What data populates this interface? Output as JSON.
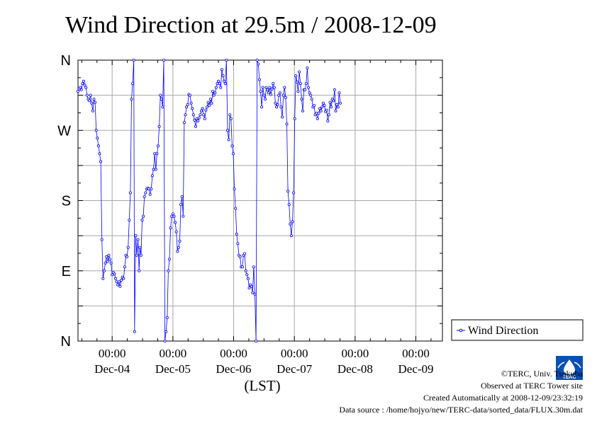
{
  "chart_data": {
    "type": "line",
    "title": "Wind Direction at 29.5m / 2008-12-09",
    "xlabel": "(LST)",
    "x_units": "hours from Dec-04 00:00 (LST)",
    "xlim": [
      15,
      111
    ],
    "ylim": [
      0,
      360
    ],
    "y_ticks": [
      {
        "value": 0,
        "label": "N"
      },
      {
        "value": 90,
        "label": "E"
      },
      {
        "value": 180,
        "label": "S"
      },
      {
        "value": 270,
        "label": "W"
      },
      {
        "value": 360,
        "label": "N"
      }
    ],
    "x_time_ticks": [
      24,
      40,
      56,
      72,
      88,
      104
    ],
    "x_time_labels": [
      "00:00",
      "00:00",
      "00:00",
      "00:00",
      "00:00",
      "00:00"
    ],
    "x_day_labels": [
      {
        "x": 24,
        "label": "Dec-04"
      },
      {
        "x": 40,
        "label": "Dec-05"
      },
      {
        "x": 56,
        "label": "Dec-06"
      },
      {
        "x": 72,
        "label": "Dec-07"
      },
      {
        "x": 88,
        "label": "Dec-08"
      },
      {
        "x": 104,
        "label": "Dec-09"
      }
    ],
    "grid": true,
    "legend_position": "right",
    "series": [
      {
        "name": "Wind Direction",
        "color": "#0000ff",
        "points": [
          [
            15.0,
            320
          ],
          [
            15.3,
            323
          ],
          [
            15.6,
            325
          ],
          [
            15.9,
            322
          ],
          [
            16.2,
            330
          ],
          [
            16.5,
            333
          ],
          [
            16.8,
            328
          ],
          [
            17.1,
            325
          ],
          [
            17.4,
            315
          ],
          [
            17.7,
            310
          ],
          [
            18.0,
            308
          ],
          [
            18.3,
            315
          ],
          [
            18.6,
            305
          ],
          [
            18.9,
            295
          ],
          [
            19.2,
            310
          ],
          [
            19.5,
            306
          ],
          [
            19.8,
            270
          ],
          [
            20.1,
            260
          ],
          [
            20.4,
            250
          ],
          [
            20.7,
            240
          ],
          [
            21.0,
            230
          ],
          [
            21.3,
            130
          ],
          [
            21.6,
            80
          ],
          [
            21.9,
            90
          ],
          [
            22.2,
            100
          ],
          [
            22.5,
            108
          ],
          [
            22.8,
            102
          ],
          [
            23.1,
            110
          ],
          [
            23.4,
            105
          ],
          [
            23.7,
            100
          ],
          [
            24.0,
            85
          ],
          [
            24.3,
            88
          ],
          [
            24.6,
            86
          ],
          [
            24.9,
            80
          ],
          [
            25.2,
            76
          ],
          [
            25.5,
            72
          ],
          [
            25.8,
            76
          ],
          [
            26.1,
            70
          ],
          [
            26.4,
            78
          ],
          [
            26.7,
            82
          ],
          [
            27.0,
            80
          ],
          [
            27.3,
            95
          ],
          [
            27.6,
            110
          ],
          [
            27.9,
            108
          ],
          [
            28.2,
            120
          ],
          [
            28.5,
            155
          ],
          [
            28.8,
            190
          ],
          [
            29.1,
            310
          ],
          [
            29.4,
            330
          ],
          [
            29.7,
            360
          ],
          [
            29.9,
            12
          ],
          [
            30.2,
            135
          ],
          [
            30.5,
            110
          ],
          [
            30.8,
            130
          ],
          [
            31.1,
            90
          ],
          [
            31.3,
            120
          ],
          [
            31.6,
            110
          ],
          [
            31.9,
            155
          ],
          [
            32.2,
            160
          ],
          [
            32.5,
            185
          ],
          [
            32.8,
            190
          ],
          [
            33.1,
            195
          ],
          [
            33.4,
            196
          ],
          [
            33.7,
            195
          ],
          [
            34.0,
            188
          ],
          [
            34.3,
            195
          ],
          [
            34.6,
            212
          ],
          [
            34.9,
            220
          ],
          [
            35.2,
            240
          ],
          [
            35.5,
            220
          ],
          [
            35.8,
            240
          ],
          [
            36.1,
            250
          ],
          [
            36.4,
            275
          ],
          [
            36.7,
            315
          ],
          [
            37.0,
            310
          ],
          [
            37.3,
            300
          ],
          [
            37.6,
            360
          ],
          [
            37.9,
            0
          ],
          [
            38.2,
            12
          ],
          [
            38.5,
            30
          ],
          [
            38.8,
            90
          ],
          [
            39.1,
            105
          ],
          [
            39.4,
            145
          ],
          [
            39.7,
            160
          ],
          [
            40.0,
            163
          ],
          [
            40.3,
            160
          ],
          [
            40.6,
            152
          ],
          [
            40.9,
            140
          ],
          [
            41.2,
            115
          ],
          [
            41.5,
            120
          ],
          [
            41.8,
            128
          ],
          [
            42.1,
            175
          ],
          [
            42.4,
            185
          ],
          [
            42.7,
            160
          ],
          [
            43.0,
            280
          ],
          [
            43.3,
            290
          ],
          [
            43.6,
            300
          ],
          [
            43.9,
            303
          ],
          [
            44.2,
            316
          ],
          [
            44.5,
            315
          ],
          [
            44.8,
            305
          ],
          [
            45.1,
            298
          ],
          [
            45.4,
            290
          ],
          [
            45.7,
            283
          ],
          [
            46.0,
            275
          ],
          [
            46.3,
            285
          ],
          [
            46.6,
            282
          ],
          [
            46.9,
            286
          ],
          [
            47.2,
            290
          ],
          [
            47.5,
            295
          ],
          [
            47.8,
            298
          ],
          [
            48.1,
            290
          ],
          [
            48.4,
            285
          ],
          [
            48.7,
            296
          ],
          [
            49.0,
            300
          ],
          [
            49.3,
            306
          ],
          [
            49.6,
            302
          ],
          [
            49.9,
            310
          ],
          [
            50.2,
            305
          ],
          [
            50.5,
            320
          ],
          [
            50.8,
            315
          ],
          [
            51.1,
            318
          ],
          [
            51.4,
            325
          ],
          [
            51.7,
            330
          ],
          [
            52.0,
            333
          ],
          [
            52.3,
            330
          ],
          [
            52.6,
            325
          ],
          [
            52.9,
            348
          ],
          [
            53.2,
            340
          ],
          [
            53.5,
            333
          ],
          [
            53.8,
            330
          ],
          [
            54.1,
            360
          ],
          [
            54.4,
            270
          ],
          [
            54.7,
            258
          ],
          [
            55.0,
            290
          ],
          [
            55.3,
            285
          ],
          [
            55.6,
            250
          ],
          [
            55.9,
            240
          ],
          [
            56.2,
            195
          ],
          [
            56.5,
            170
          ],
          [
            56.8,
            137
          ],
          [
            57.1,
            125
          ],
          [
            57.4,
            110
          ],
          [
            57.7,
            108
          ],
          [
            58.0,
            95
          ],
          [
            58.3,
            95
          ],
          [
            58.6,
            110
          ],
          [
            58.9,
            112
          ],
          [
            59.2,
            90
          ],
          [
            59.5,
            85
          ],
          [
            59.8,
            80
          ],
          [
            60.1,
            68
          ],
          [
            60.4,
            72
          ],
          [
            60.7,
            70
          ],
          [
            61.0,
            62
          ],
          [
            61.3,
            95
          ],
          [
            61.6,
            60
          ],
          [
            61.9,
            0
          ],
          [
            62.2,
            360
          ],
          [
            62.5,
            355
          ],
          [
            62.8,
            335
          ],
          [
            63.1,
            320
          ],
          [
            63.4,
            300
          ],
          [
            63.7,
            325
          ],
          [
            64.0,
            315
          ],
          [
            64.3,
            310
          ],
          [
            64.6,
            325
          ],
          [
            64.9,
            322
          ],
          [
            65.2,
            318
          ],
          [
            65.5,
            325
          ],
          [
            65.8,
            316
          ],
          [
            66.1,
            323
          ],
          [
            66.4,
            330
          ],
          [
            66.7,
            325
          ],
          [
            67.0,
            305
          ],
          [
            67.3,
            300
          ],
          [
            67.6,
            303
          ],
          [
            67.9,
            315
          ],
          [
            68.2,
            318
          ],
          [
            68.5,
            300
          ],
          [
            68.8,
            287
          ],
          [
            69.1,
            315
          ],
          [
            69.4,
            325
          ],
          [
            69.7,
            312
          ],
          [
            70.0,
            278
          ],
          [
            70.3,
            192
          ],
          [
            70.6,
            175
          ],
          [
            70.9,
            150
          ],
          [
            71.2,
            135
          ],
          [
            71.5,
            153
          ],
          [
            71.8,
            190
          ],
          [
            72.1,
            285
          ],
          [
            72.4,
            340
          ],
          [
            72.7,
            332
          ],
          [
            73.0,
            320
          ],
          [
            73.3,
            345
          ],
          [
            73.6,
            330
          ],
          [
            73.9,
            310
          ],
          [
            74.2,
            295
          ],
          [
            74.5,
            322
          ],
          [
            74.8,
            322
          ],
          [
            75.1,
            330
          ],
          [
            75.4,
            350
          ],
          [
            75.7,
            325
          ],
          [
            76.0,
            318
          ],
          [
            76.3,
            315
          ],
          [
            76.6,
            310
          ],
          [
            76.9,
            300
          ],
          [
            77.2,
            302
          ],
          [
            77.5,
            290
          ],
          [
            77.8,
            292
          ],
          [
            78.1,
            285
          ],
          [
            78.4,
            292
          ],
          [
            78.7,
            298
          ],
          [
            79.0,
            295
          ],
          [
            79.3,
            300
          ],
          [
            79.6,
            305
          ],
          [
            79.9,
            302
          ],
          [
            80.2,
            294
          ],
          [
            80.5,
            296
          ],
          [
            80.8,
            282
          ],
          [
            81.1,
            290
          ],
          [
            81.4,
            306
          ],
          [
            81.7,
            300
          ],
          [
            82.0,
            310
          ],
          [
            82.3,
            308
          ],
          [
            82.6,
            322
          ],
          [
            82.9,
            295
          ],
          [
            83.2,
            303
          ],
          [
            83.5,
            300
          ],
          [
            83.8,
            318
          ],
          [
            84.1,
            305
          ]
        ]
      }
    ]
  },
  "legend": {
    "label": "Wind Direction"
  },
  "footer": {
    "copyright": "©TERC, Univ. Tsukuba",
    "observed": "Observed at TERC Tower site",
    "created": "Created Automatically at 2008-12-09/23:32:19",
    "source": "Data source : /home/hojyo/new/TERC-data/sorted_data/FLUX.30m.dat"
  },
  "logo": {
    "text": "TERC",
    "color": "#0a4fb4"
  }
}
